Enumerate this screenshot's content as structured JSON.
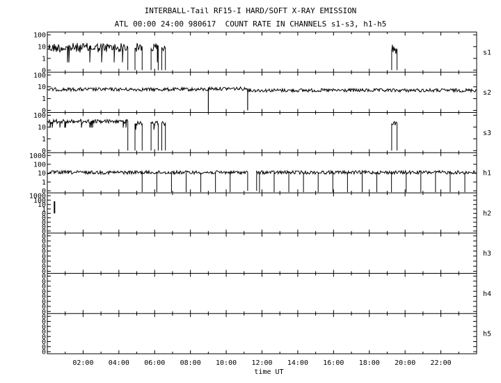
{
  "header": {
    "title": "INTERBALL-Tail RF15-I HARD/SOFT X-RAY EMISSION",
    "subtitle": "ATL 00:00 24:00 980617  COUNT RATE IN CHANNELS s1-s3, h1-h5"
  },
  "chart_data": {
    "type": "line",
    "title": "INTERBALL-Tail RF15-I HARD/SOFT X-RAY EMISSION",
    "subtitle": "ATL 00:00 24:00 980617  COUNT RATE IN CHANNELS s1-s3, h1-h5",
    "xlabel": "time UT",
    "x_range_hours": [
      0,
      24
    ],
    "x_ticks": [
      "02:00",
      "04:00",
      "06:00",
      "08:00",
      "10:00",
      "12:00",
      "14:00",
      "16:00",
      "18:00",
      "20:00",
      "22:00"
    ],
    "y_scale": "log",
    "grid": false,
    "panels": [
      {
        "name": "s1",
        "y_ticks": [
          "100",
          "10",
          "1",
          "0"
        ],
        "segments": [
          {
            "t0": 0.0,
            "t1": 4.5,
            "level": 8
          },
          {
            "t0": 4.9,
            "t1": 5.3,
            "level": 8
          },
          {
            "t0": 5.8,
            "t1": 6.2,
            "level": 8
          },
          {
            "t0": 6.4,
            "t1": 6.6,
            "level": 8
          },
          {
            "t0": 19.25,
            "t1": 19.55,
            "level": 6
          }
        ]
      },
      {
        "name": "s2",
        "y_ticks": [
          "100",
          "10",
          "1",
          "0"
        ],
        "segments": [
          {
            "t0": 0.0,
            "t1": 9.0,
            "level": 6
          },
          {
            "t0": 9.0,
            "t1": 11.2,
            "level": 7
          },
          {
            "t0": 11.2,
            "t1": 24.0,
            "level": 5
          }
        ]
      },
      {
        "name": "s3",
        "y_ticks": [
          "100",
          "10",
          "1",
          "0"
        ],
        "segments": [
          {
            "t0": 0.0,
            "t1": 4.5,
            "level": 30
          },
          {
            "t0": 4.9,
            "t1": 5.3,
            "level": 20
          },
          {
            "t0": 5.8,
            "t1": 6.2,
            "level": 20
          },
          {
            "t0": 6.4,
            "t1": 6.6,
            "level": 20
          },
          {
            "t0": 19.25,
            "t1": 19.55,
            "level": 20
          }
        ]
      },
      {
        "name": "h1",
        "y_ticks": [
          "1000",
          "100",
          "10",
          "1",
          "0"
        ],
        "segments": [
          {
            "t0": 0.0,
            "t1": 11.2,
            "level": 12
          },
          {
            "t0": 11.7,
            "t1": 24.0,
            "level": 12
          }
        ]
      },
      {
        "name": "h2",
        "y_ticks": [
          "1000",
          "100",
          "10",
          "1",
          "0",
          "0",
          "0",
          "0",
          "0"
        ],
        "segments": [
          {
            "t0": 0.38,
            "t1": 0.42,
            "level": 50
          }
        ]
      },
      {
        "name": "h3",
        "y_ticks": [
          "0",
          "0",
          "0",
          "0",
          "0",
          "0",
          "0",
          "0"
        ],
        "segments": []
      },
      {
        "name": "h4",
        "y_ticks": [
          "0",
          "0",
          "0",
          "0",
          "0",
          "0",
          "0",
          "0"
        ],
        "segments": []
      },
      {
        "name": "h5",
        "y_ticks": [
          "0",
          "0",
          "0",
          "0",
          "0",
          "0",
          "0",
          "0"
        ],
        "segments": []
      }
    ]
  }
}
